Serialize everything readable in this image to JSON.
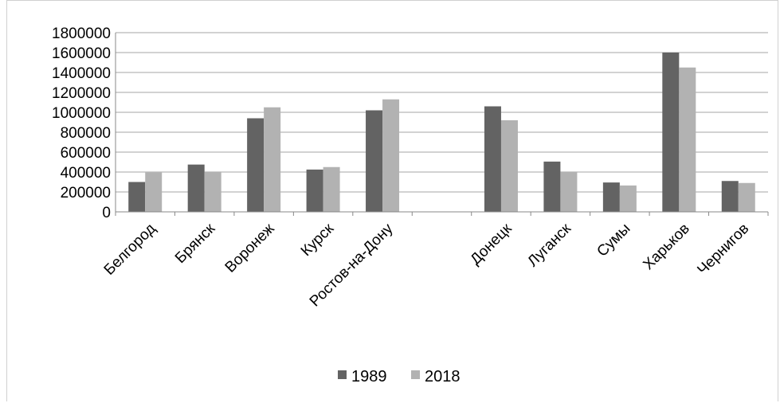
{
  "chart_data": {
    "type": "bar",
    "categories": [
      "Белгород",
      "Брянск",
      "Воронеж",
      "Курск",
      "Ростов-на-Дону",
      "",
      "Донецк",
      "Луганск",
      "Сумы",
      "Харьков",
      "Чернигов"
    ],
    "series": [
      {
        "name": "1989",
        "color": "#636363",
        "values": [
          300000,
          475000,
          940000,
          425000,
          1020000,
          null,
          1060000,
          505000,
          295000,
          1600000,
          310000
        ]
      },
      {
        "name": "2018",
        "color": "#b2b2b2",
        "values": [
          395000,
          405000,
          1050000,
          450000,
          1130000,
          null,
          920000,
          405000,
          265000,
          1450000,
          290000
        ]
      }
    ],
    "yticks": [
      "0",
      "200000",
      "400000",
      "600000",
      "800000",
      "1000000",
      "1200000",
      "1400000",
      "1600000",
      "1800000"
    ],
    "ylim": [
      0,
      1800000
    ],
    "grid": true,
    "legend_position": "bottom"
  }
}
